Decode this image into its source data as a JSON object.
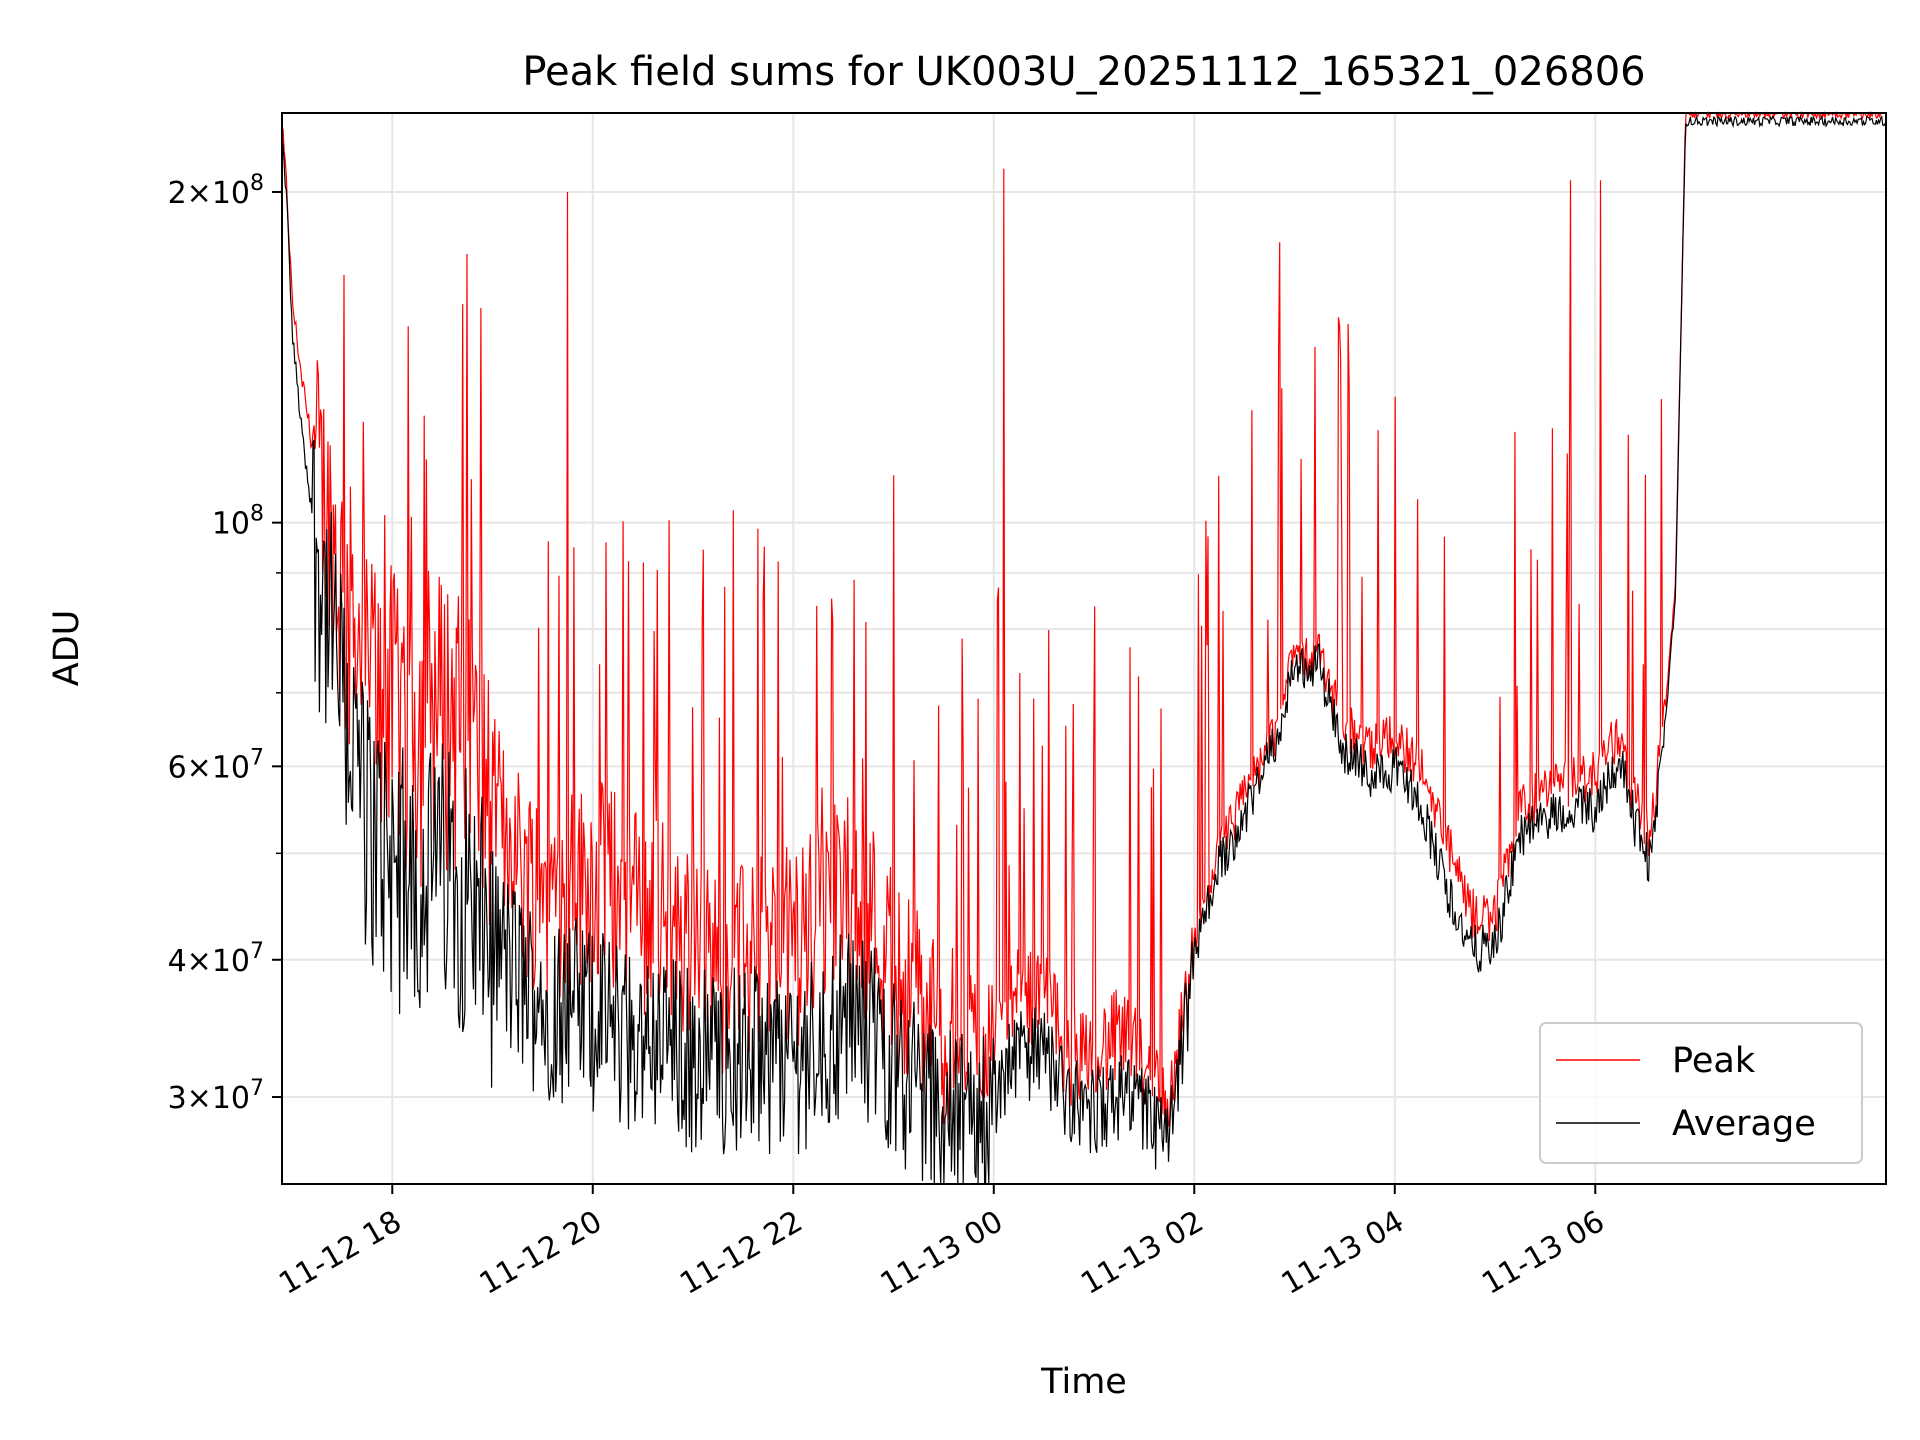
{
  "chart_data": {
    "type": "line",
    "title": "Peak field sums for UK003U_20251112_165321_026806",
    "xlabel": "Time",
    "ylabel": "ADU",
    "yscale": "log",
    "ylim": [
      25000000,
      236000000
    ],
    "xlim_hours": [
      16.9,
      32.9
    ],
    "grid": true,
    "legend": {
      "position": "lower-right",
      "entries": [
        "Peak",
        "Average"
      ]
    },
    "x_ticks": [
      {
        "hour": 18,
        "label": "11-12 18"
      },
      {
        "hour": 20,
        "label": "11-12 20"
      },
      {
        "hour": 22,
        "label": "11-12 22"
      },
      {
        "hour": 24,
        "label": "11-13 00"
      },
      {
        "hour": 26,
        "label": "11-13 02"
      },
      {
        "hour": 28,
        "label": "11-13 04"
      },
      {
        "hour": 30,
        "label": "11-13 06"
      }
    ],
    "y_ticks": [
      {
        "value": 30000000,
        "mantissa": "3",
        "exponent": "7"
      },
      {
        "value": 40000000,
        "mantissa": "4",
        "exponent": "7"
      },
      {
        "value": 60000000,
        "mantissa": "6",
        "exponent": "7"
      },
      {
        "value": 100000000,
        "mantissa": "",
        "exponent": "8"
      },
      {
        "value": 200000000,
        "mantissa": "2",
        "exponent": "8"
      }
    ],
    "y_minor_ticks": [
      50000000,
      70000000,
      80000000,
      90000000
    ],
    "series": [
      {
        "name": "Peak",
        "color": "#ff0000",
        "x_hours": [
          16.9,
          16.95,
          17.0,
          17.1,
          17.25,
          17.5,
          17.75,
          18.0,
          18.25,
          18.5,
          18.75,
          19.0,
          19.25,
          19.5,
          19.75,
          20.0,
          20.25,
          20.5,
          20.75,
          21.0,
          21.25,
          21.5,
          21.75,
          22.0,
          22.25,
          22.5,
          22.75,
          23.0,
          23.25,
          23.5,
          23.75,
          24.0,
          24.25,
          24.5,
          24.75,
          25.0,
          25.25,
          25.5,
          25.75,
          26.0,
          26.25,
          26.5,
          26.75,
          27.0,
          27.25,
          27.5,
          27.6,
          27.75,
          28.0,
          28.25,
          28.5,
          28.75,
          29.0,
          29.25,
          29.5,
          29.75,
          30.0,
          30.1,
          30.25,
          30.4,
          30.55,
          30.7,
          30.8,
          30.9
        ],
        "values": [
          230000000,
          200000000,
          160000000,
          135000000,
          110000000,
          88000000,
          74000000,
          70000000,
          66000000,
          70000000,
          66000000,
          55000000,
          50000000,
          47000000,
          47000000,
          48000000,
          47000000,
          45000000,
          44000000,
          41000000,
          40000000,
          40000000,
          41000000,
          42000000,
          44000000,
          47000000,
          45000000,
          40000000,
          37000000,
          34000000,
          33000000,
          34000000,
          37000000,
          37000000,
          33000000,
          33000000,
          34000000,
          32000000,
          29000000,
          40000000,
          50000000,
          56000000,
          62000000,
          75000000,
          75000000,
          65000000,
          64000000,
          62000000,
          64000000,
          60000000,
          52000000,
          44000000,
          44000000,
          55000000,
          57000000,
          58000000,
          59000000,
          62000000,
          64000000,
          56000000,
          52000000,
          68000000,
          88000000,
          236000000
        ]
      },
      {
        "name": "Average",
        "color": "#000000",
        "x_hours": [
          16.9,
          16.95,
          17.0,
          17.1,
          17.25,
          17.5,
          17.75,
          18.0,
          18.25,
          18.5,
          18.75,
          19.0,
          19.25,
          19.5,
          19.75,
          20.0,
          20.25,
          20.5,
          20.75,
          21.0,
          21.25,
          21.5,
          21.75,
          22.0,
          22.25,
          22.5,
          22.75,
          23.0,
          23.25,
          23.5,
          23.75,
          24.0,
          24.25,
          24.5,
          24.75,
          25.0,
          25.25,
          25.5,
          25.75,
          26.0,
          26.25,
          26.5,
          26.75,
          27.0,
          27.25,
          27.5,
          27.6,
          27.75,
          28.0,
          28.25,
          28.5,
          28.75,
          29.0,
          29.25,
          29.5,
          29.75,
          30.0,
          30.1,
          30.25,
          30.4,
          30.55,
          30.7,
          30.8,
          30.9
        ],
        "values": [
          225000000,
          195000000,
          150000000,
          120000000,
          95000000,
          70000000,
          55000000,
          50000000,
          48000000,
          50000000,
          47000000,
          42000000,
          39000000,
          37000000,
          37000000,
          36000000,
          35000000,
          34000000,
          34000000,
          33000000,
          33000000,
          33000000,
          33000000,
          33000000,
          34000000,
          36000000,
          35000000,
          33000000,
          31000000,
          29000000,
          28500000,
          30000000,
          33000000,
          33000000,
          30000000,
          29000000,
          30000000,
          29000000,
          27000000,
          40000000,
          49000000,
          54000000,
          61000000,
          74000000,
          74000000,
          62000000,
          61000000,
          59000000,
          60000000,
          56000000,
          47000000,
          41000000,
          41000000,
          52000000,
          54000000,
          55000000,
          55000000,
          58000000,
          61000000,
          53000000,
          49000000,
          66000000,
          86000000,
          232000000
        ]
      }
    ],
    "notable_spikes": [
      {
        "hour": 19.75,
        "value": 200000000
      },
      {
        "hour": 24.1,
        "value": 210000000
      },
      {
        "hour": 26.85,
        "value": 180000000
      },
      {
        "hour": 29.75,
        "value": 205000000
      },
      {
        "hour": 30.05,
        "value": 205000000
      }
    ]
  }
}
